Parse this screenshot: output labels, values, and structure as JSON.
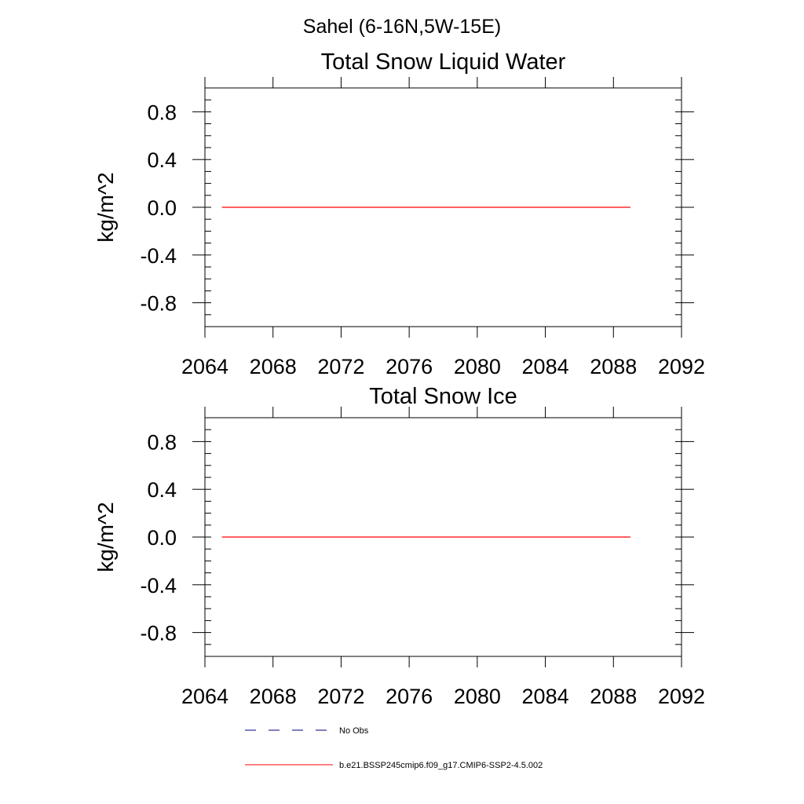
{
  "figure": {
    "title": "Sahel (6-16N,5W-15E)"
  },
  "chart_data": [
    {
      "type": "line",
      "title": "Total Snow Liquid Water",
      "xlabel": "",
      "ylabel": "kg/m^2",
      "xlim": [
        2064,
        2092
      ],
      "ylim": [
        -1.0,
        1.0
      ],
      "xticks": [
        2064,
        2068,
        2072,
        2076,
        2080,
        2084,
        2088,
        2092
      ],
      "xtick_labels": [
        "2064",
        "2068",
        "2072",
        "2076",
        "2080",
        "2084",
        "2088",
        "2092"
      ],
      "yticks": [
        0.8,
        0.4,
        0.0,
        -0.4,
        -0.8
      ],
      "ytick_labels": [
        "0.8",
        "0.4",
        "0.0",
        "-0.4",
        "-0.8"
      ],
      "grid": false,
      "series": [
        {
          "name": "b.e21.BSSP245cmip6.f09_g17.CMIP6-SSP2-4.5.002",
          "color": "#ff0000",
          "x": [
            2065,
            2089
          ],
          "y": [
            0.0,
            0.0
          ]
        }
      ]
    },
    {
      "type": "line",
      "title": "Total Snow Ice",
      "xlabel": "",
      "ylabel": "kg/m^2",
      "xlim": [
        2064,
        2092
      ],
      "ylim": [
        -1.0,
        1.0
      ],
      "xticks": [
        2064,
        2068,
        2072,
        2076,
        2080,
        2084,
        2088,
        2092
      ],
      "xtick_labels": [
        "2064",
        "2068",
        "2072",
        "2076",
        "2080",
        "2084",
        "2088",
        "2092"
      ],
      "yticks": [
        0.8,
        0.4,
        0.0,
        -0.4,
        -0.8
      ],
      "ytick_labels": [
        "0.8",
        "0.4",
        "0.0",
        "-0.4",
        "-0.8"
      ],
      "grid": false,
      "series": [
        {
          "name": "b.e21.BSSP245cmip6.f09_g17.CMIP6-SSP2-4.5.002",
          "color": "#ff0000",
          "x": [
            2065,
            2089
          ],
          "y": [
            0.0,
            0.0
          ]
        }
      ]
    }
  ],
  "legend": {
    "placement": "bottom",
    "entries": [
      {
        "label": "No Obs",
        "color": "#000080",
        "style": "dashed"
      },
      {
        "label": "b.e21.BSSP245cmip6.f09_g17.CMIP6-SSP2-4.5.002",
        "color": "#ff0000",
        "style": "solid"
      }
    ]
  }
}
